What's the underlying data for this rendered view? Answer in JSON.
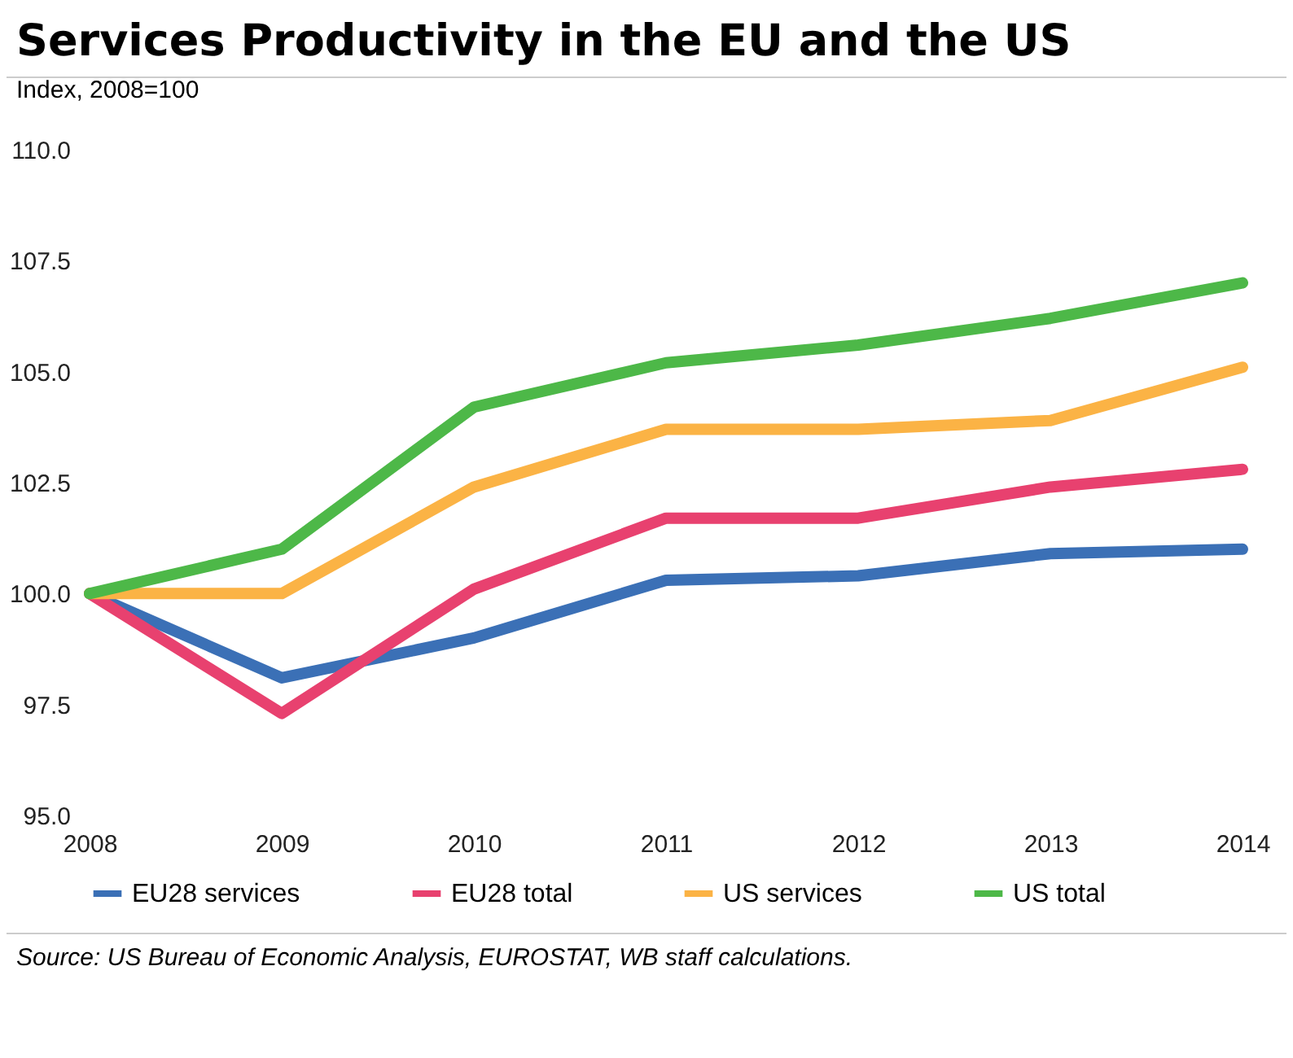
{
  "chart_data": {
    "type": "line",
    "title": "Services Productivity in the EU and the US",
    "subtitle": "Index, 2008=100",
    "categories": [
      "2008",
      "2009",
      "2010",
      "2011",
      "2012",
      "2013",
      "2014"
    ],
    "series": [
      {
        "name": "EU28 services",
        "color": "#3b70b6",
        "values": [
          100,
          98.1,
          99.0,
          100.3,
          100.4,
          100.9,
          101.0
        ]
      },
      {
        "name": "EU28 total",
        "color": "#e8416f",
        "values": [
          100,
          97.3,
          100.1,
          101.7,
          101.7,
          102.4,
          102.8
        ]
      },
      {
        "name": "US services",
        "color": "#fbb345",
        "values": [
          100,
          100.0,
          102.4,
          103.7,
          103.7,
          103.9,
          105.1
        ]
      },
      {
        "name": "US total",
        "color": "#4db848",
        "values": [
          100,
          101.0,
          104.2,
          105.2,
          105.6,
          106.2,
          107.0
        ]
      }
    ],
    "ylim": [
      95,
      110
    ],
    "yticks": [
      {
        "value": 95,
        "label": "95.0"
      },
      {
        "value": 97.5,
        "label": "97.5"
      },
      {
        "value": 100,
        "label": "100.0"
      },
      {
        "value": 102.5,
        "label": "102.5"
      },
      {
        "value": 105,
        "label": "105.0"
      },
      {
        "value": 107.5,
        "label": "107.5"
      },
      {
        "value": 110,
        "label": "110.0"
      }
    ],
    "grid": false,
    "legend": "bottom",
    "marker": "none",
    "line_style": "solid",
    "annotations": [
      "Source: US Bureau of Economic Analysis, EUROSTAT, WB staff calculations."
    ]
  }
}
